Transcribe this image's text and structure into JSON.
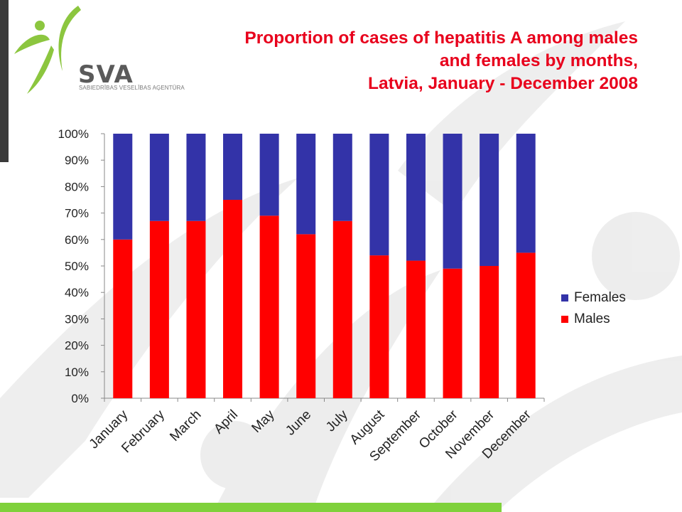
{
  "logo": {
    "text": "SVA",
    "subtitle": "SABIEDRĪBAS VESELĪBAS AĢENTŪRA"
  },
  "title_lines": [
    "Proportion of cases of hepatitis A among males",
    "and females by months,",
    "Latvia, January - December 2008"
  ],
  "colors": {
    "title": "#e8001c",
    "males": "#ff0000",
    "females": "#3333a8",
    "accent_bar": "#7fd13b"
  },
  "chart_data": {
    "type": "bar",
    "stacked": true,
    "percent": true,
    "title": "Proportion of cases of hepatitis A among males and females by months, Latvia, January - December 2008",
    "categories": [
      "January",
      "February",
      "March",
      "April",
      "May",
      "June",
      "July",
      "August",
      "September",
      "October",
      "November",
      "December"
    ],
    "series": [
      {
        "name": "Males",
        "values": [
          60,
          67,
          67,
          75,
          69,
          62,
          67,
          54,
          52,
          49,
          50,
          55
        ]
      },
      {
        "name": "Females",
        "values": [
          40,
          33,
          33,
          25,
          31,
          38,
          33,
          46,
          48,
          51,
          50,
          45
        ]
      }
    ],
    "ylim": [
      0,
      100
    ],
    "yticks": [
      "0%",
      "10%",
      "20%",
      "30%",
      "40%",
      "50%",
      "60%",
      "70%",
      "80%",
      "90%",
      "100%"
    ],
    "legend_position": "right",
    "grid": false
  }
}
